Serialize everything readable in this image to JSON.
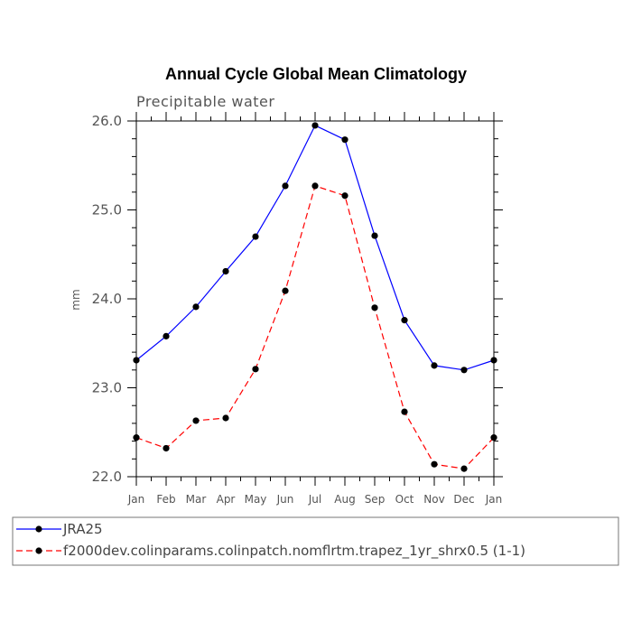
{
  "chart_data": {
    "type": "line",
    "title": "Annual Cycle Global Mean Climatology",
    "subtitle": "Precipitable water",
    "xlabel": "",
    "ylabel": "mm",
    "categories": [
      "Jan",
      "Feb",
      "Mar",
      "Apr",
      "May",
      "Jun",
      "Jul",
      "Aug",
      "Sep",
      "Oct",
      "Nov",
      "Dec",
      "Jan"
    ],
    "ylim": [
      22.0,
      26.0
    ],
    "yticks": [
      "22.0",
      "23.0",
      "24.0",
      "25.0",
      "26.0"
    ],
    "grid": false,
    "legend_position": "bottom",
    "series": [
      {
        "name": "JRA25",
        "color": "#0000ff",
        "line_style": "solid",
        "marker": "filled-circle",
        "values": [
          23.31,
          23.58,
          23.91,
          24.31,
          24.7,
          25.27,
          25.95,
          25.79,
          24.71,
          23.76,
          23.25,
          23.2,
          23.31
        ]
      },
      {
        "name": "f2000dev.colinparams.colinpatch.nomflrtm.trapez_1yr_shrx0.5 (1-1)",
        "color": "#ff0000",
        "line_style": "dashed",
        "marker": "filled-circle",
        "values": [
          22.44,
          22.32,
          22.63,
          22.66,
          23.21,
          24.09,
          25.27,
          25.16,
          23.9,
          22.73,
          22.14,
          22.09,
          22.44
        ]
      }
    ]
  }
}
